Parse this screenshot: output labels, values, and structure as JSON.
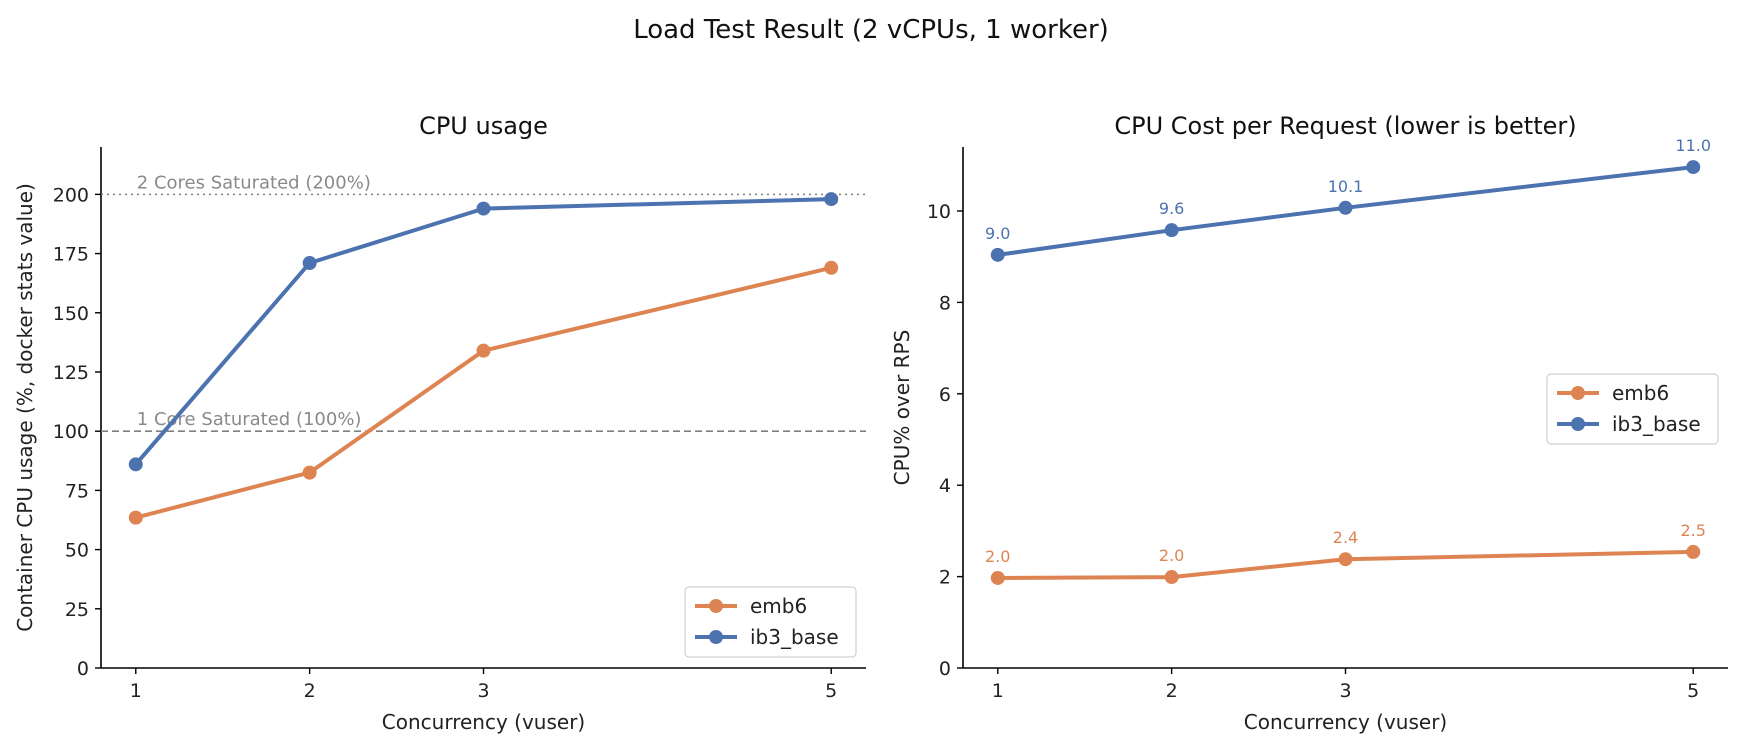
{
  "figure_title": "Load Test Result (2 vCPUs, 1 worker)",
  "colors": {
    "emb6": "#dd8452",
    "ib3_base": "#4c72b0",
    "reference": "#808080"
  },
  "chart_data": [
    {
      "type": "line",
      "title": "CPU usage",
      "xlabel": "Concurrency (vuser)",
      "ylabel": "Container CPU usage (%, docker stats value)",
      "x": [
        1,
        2,
        3,
        5
      ],
      "xticks": [
        "1",
        "2",
        "3",
        "5"
      ],
      "xlim": [
        0.8,
        5.2
      ],
      "ylim": [
        0,
        220
      ],
      "yticks": [
        0,
        25,
        50,
        75,
        100,
        125,
        150,
        175,
        200
      ],
      "grid": false,
      "legend": "lower-right",
      "series": [
        {
          "name": "emb6",
          "values": [
            63.5,
            82.5,
            134,
            169
          ]
        },
        {
          "name": "ib3_base",
          "values": [
            86,
            171,
            194,
            198
          ]
        }
      ],
      "reference_lines": [
        {
          "y": 200,
          "label": "2 Cores Saturated (200%)",
          "style": "dotted"
        },
        {
          "y": 100,
          "label": "1 Core Saturated (100%)",
          "style": "dashed"
        }
      ]
    },
    {
      "type": "line",
      "title": "CPU Cost per Request (lower is better)",
      "xlabel": "Concurrency (vuser)",
      "ylabel": "CPU% over RPS",
      "x": [
        1,
        2,
        3,
        5
      ],
      "xticks": [
        "1",
        "2",
        "3",
        "5"
      ],
      "xlim": [
        0.8,
        5.2
      ],
      "ylim": [
        0,
        11.4
      ],
      "yticks": [
        0,
        2,
        4,
        6,
        8,
        10
      ],
      "grid": false,
      "legend": "center-right",
      "series": [
        {
          "name": "emb6",
          "values": [
            1.97,
            1.99,
            2.38,
            2.54
          ],
          "labels": [
            "2.0",
            "2.0",
            "2.4",
            "2.5"
          ]
        },
        {
          "name": "ib3_base",
          "values": [
            9.04,
            9.58,
            10.07,
            10.96
          ],
          "labels": [
            "9.0",
            "9.6",
            "10.1",
            "11.0"
          ]
        }
      ]
    }
  ]
}
